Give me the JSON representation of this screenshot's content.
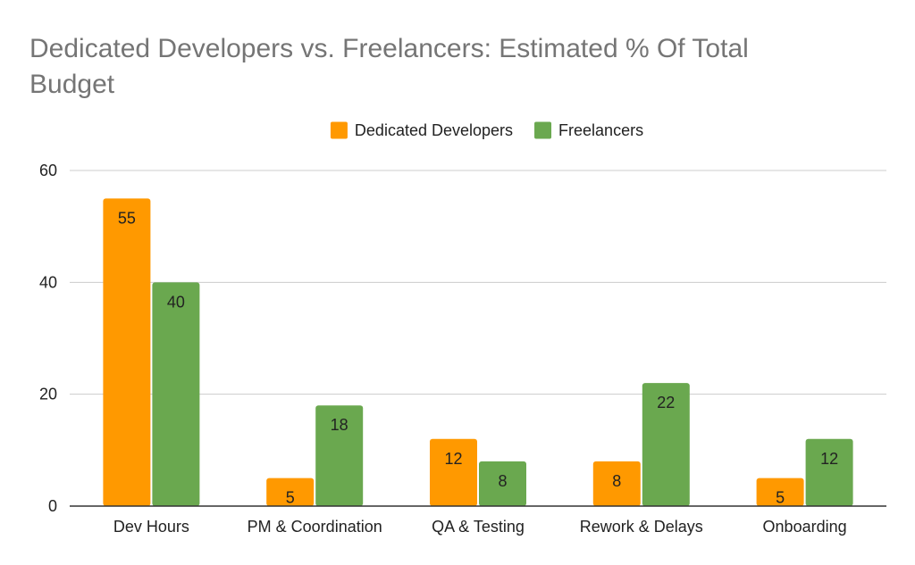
{
  "chart_data": {
    "type": "bar",
    "title": "Dedicated Developers vs. Freelancers: Estimated % Of Total Budget",
    "title_lines": [
      "Dedicated Developers vs. Freelancers: Estimated % Of Total",
      "Budget"
    ],
    "categories": [
      "Dev Hours",
      "PM & Coordination",
      "QA & Testing",
      "Rework & Delays",
      "Onboarding"
    ],
    "series": [
      {
        "name": "Dedicated Developers",
        "color": "#ff9900",
        "values": [
          55,
          5,
          12,
          8,
          5
        ]
      },
      {
        "name": "Freelancers",
        "color": "#6aa84f",
        "values": [
          40,
          18,
          8,
          22,
          12
        ]
      }
    ],
    "ylim": [
      0,
      60
    ],
    "yticks": [
      0,
      20,
      40,
      60
    ],
    "xlabel": "",
    "ylabel": "",
    "grid": true,
    "legend": "top-center",
    "data_labels": true
  }
}
